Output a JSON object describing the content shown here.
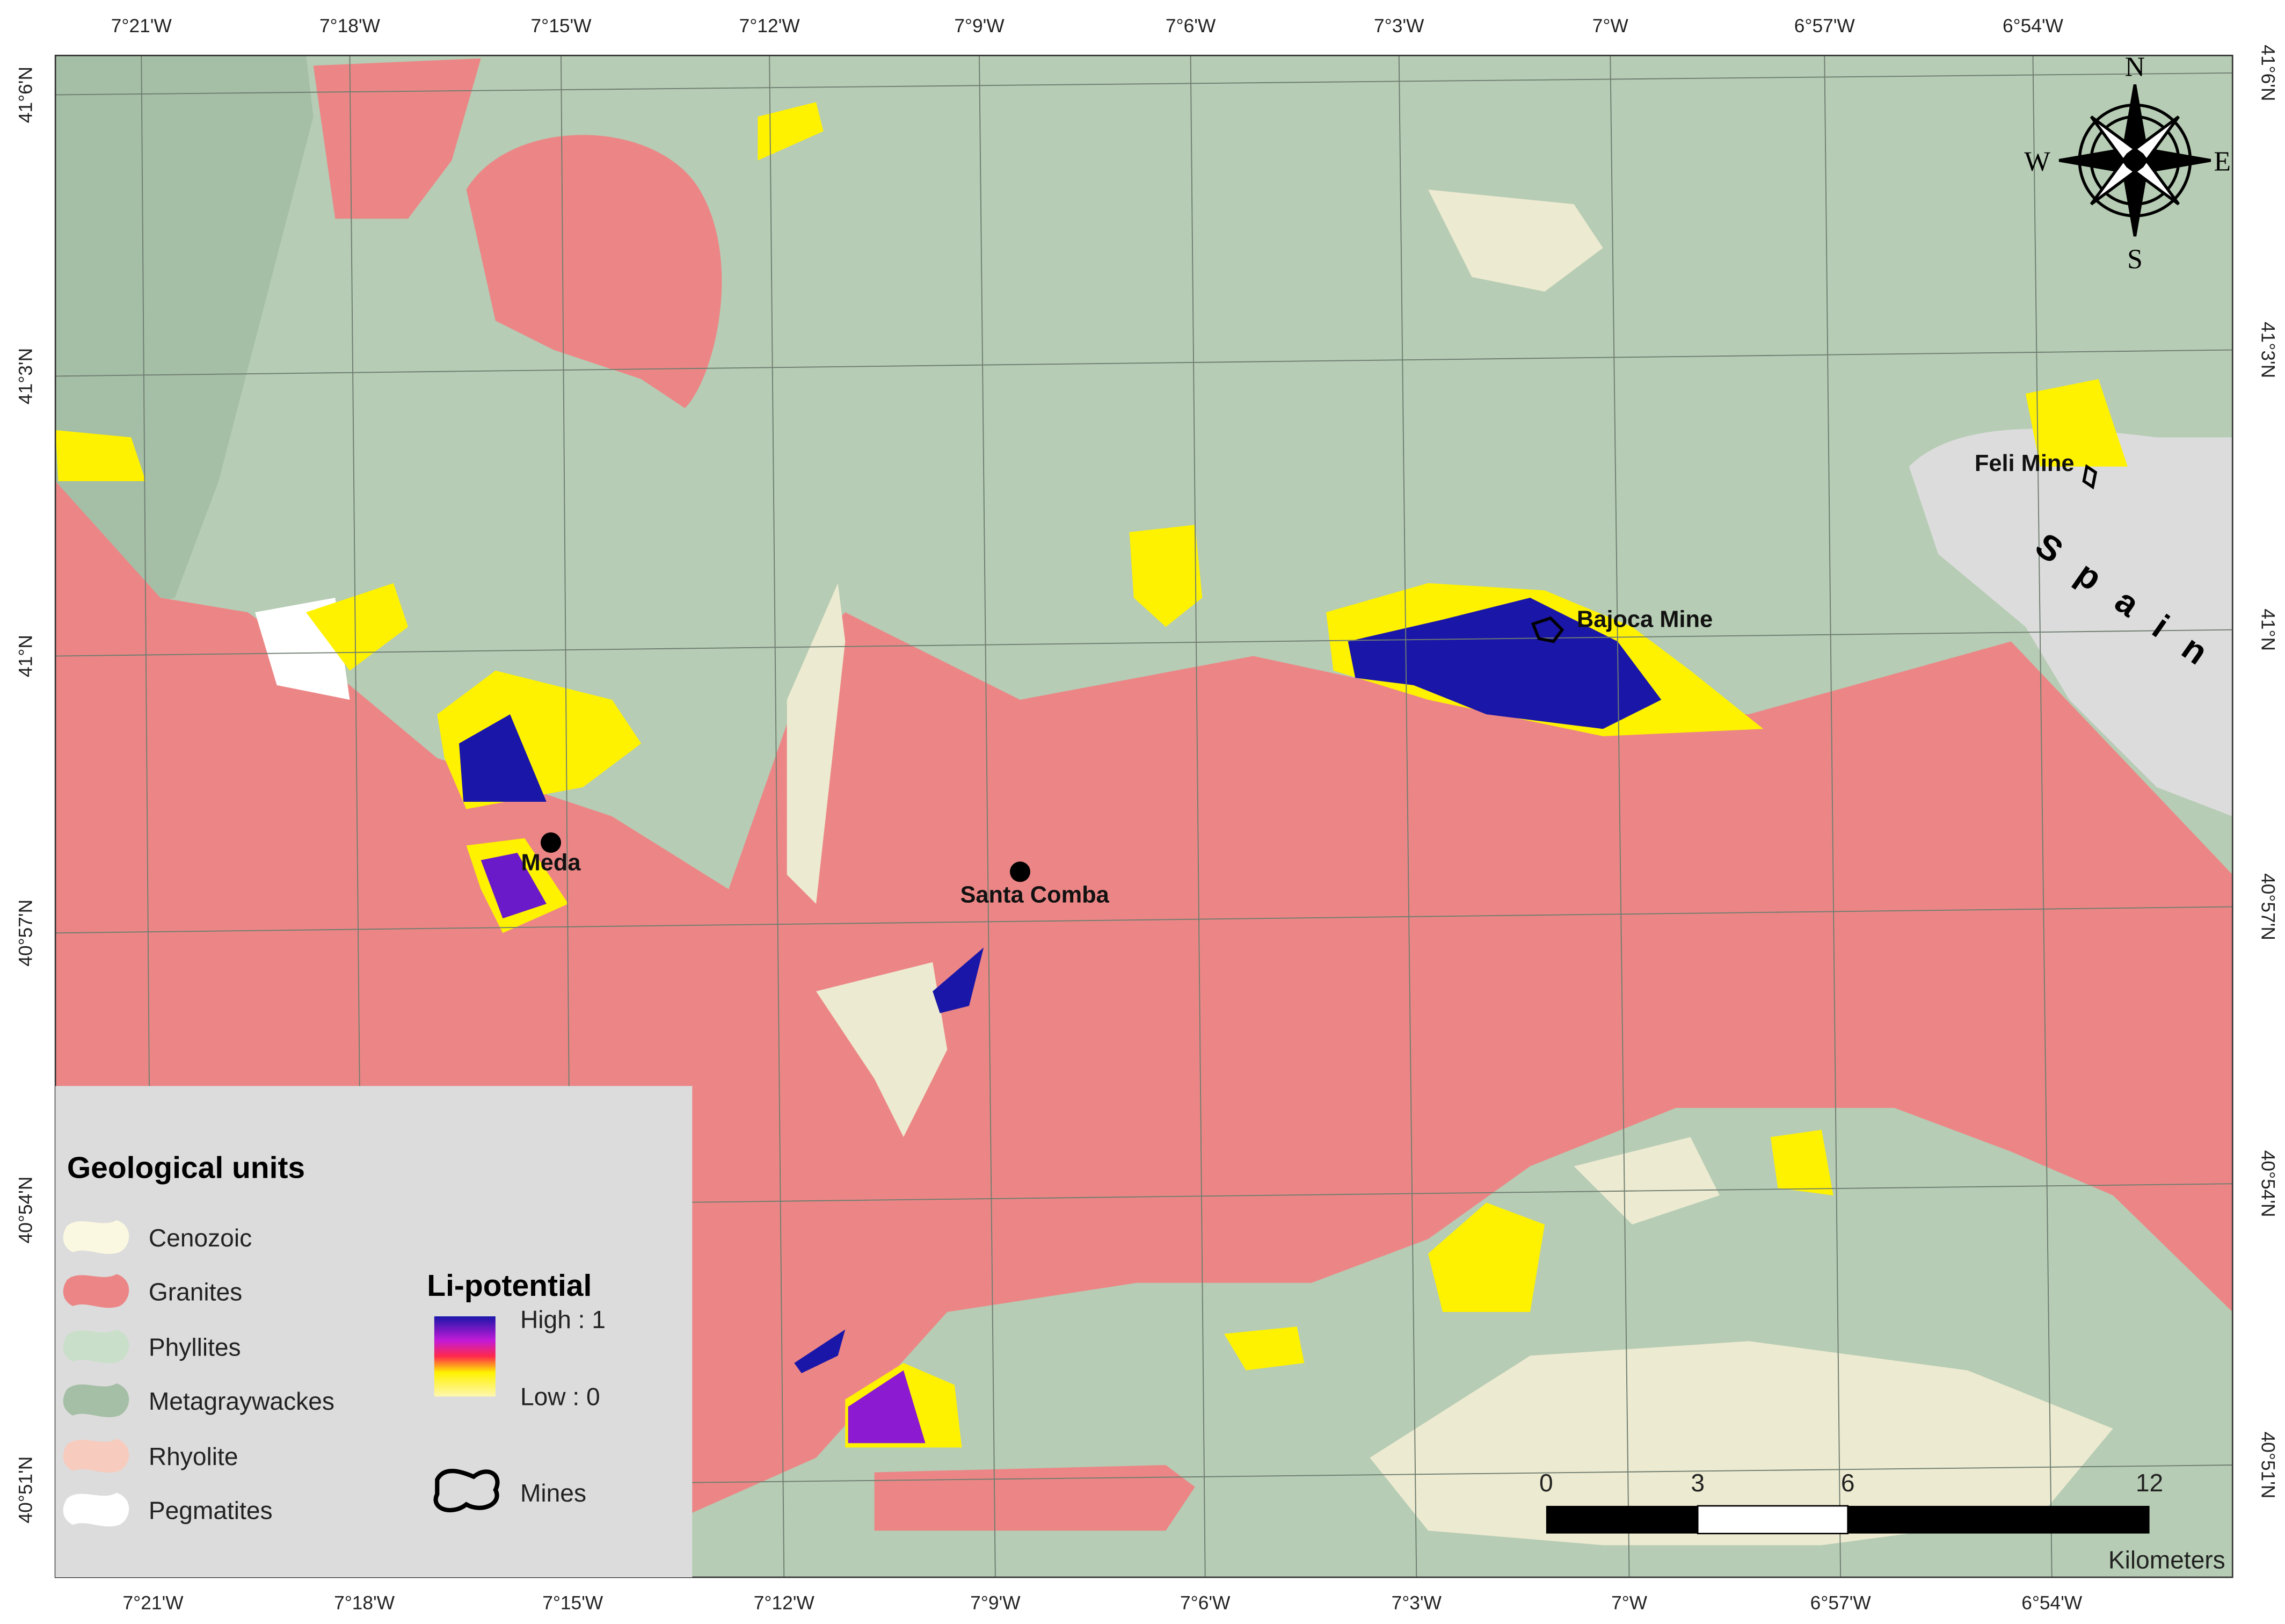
{
  "map": {
    "top_ticks": [
      "7°21'W",
      "7°18'W",
      "7°15'W",
      "7°12'W",
      "7°9'W",
      "7°6'W",
      "7°3'W",
      "7°W",
      "6°57'W",
      "6°54'W"
    ],
    "bottom_ticks": [
      "7°21'W",
      "7°18'W",
      "7°15'W",
      "7°12'W",
      "7°9'W",
      "7°6'W",
      "7°3'W",
      "7°W",
      "6°57'W",
      "6°54'W"
    ],
    "left_ticks": [
      "41°6'N",
      "41°3'N",
      "41°N",
      "40°57'N",
      "40°54'N",
      "40°51'N"
    ],
    "right_ticks": [
      "41°6'N",
      "41°3'N",
      "41°N",
      "40°57'N",
      "40°54'N",
      "40°51'N"
    ],
    "places": [
      "Meda",
      "Santa Comba",
      "Bajoca Mine",
      "Feli Mine",
      "Spain"
    ],
    "compass": {
      "north": "N",
      "south": "S",
      "west": "W",
      "east": "E"
    },
    "legend": {
      "title": "Geological units",
      "units": [
        "Cenozoic",
        "Granites",
        "Phyllites",
        "Metagraywackes",
        "Rhyolite",
        "Pegmatites"
      ],
      "li_title": "Li-potential",
      "li_high": "High : 1",
      "li_low": "Low : 0",
      "mines": "Mines"
    },
    "scale_bar": {
      "labels": [
        "0",
        "3",
        "6",
        "12"
      ],
      "unit": "Kilometers"
    }
  }
}
